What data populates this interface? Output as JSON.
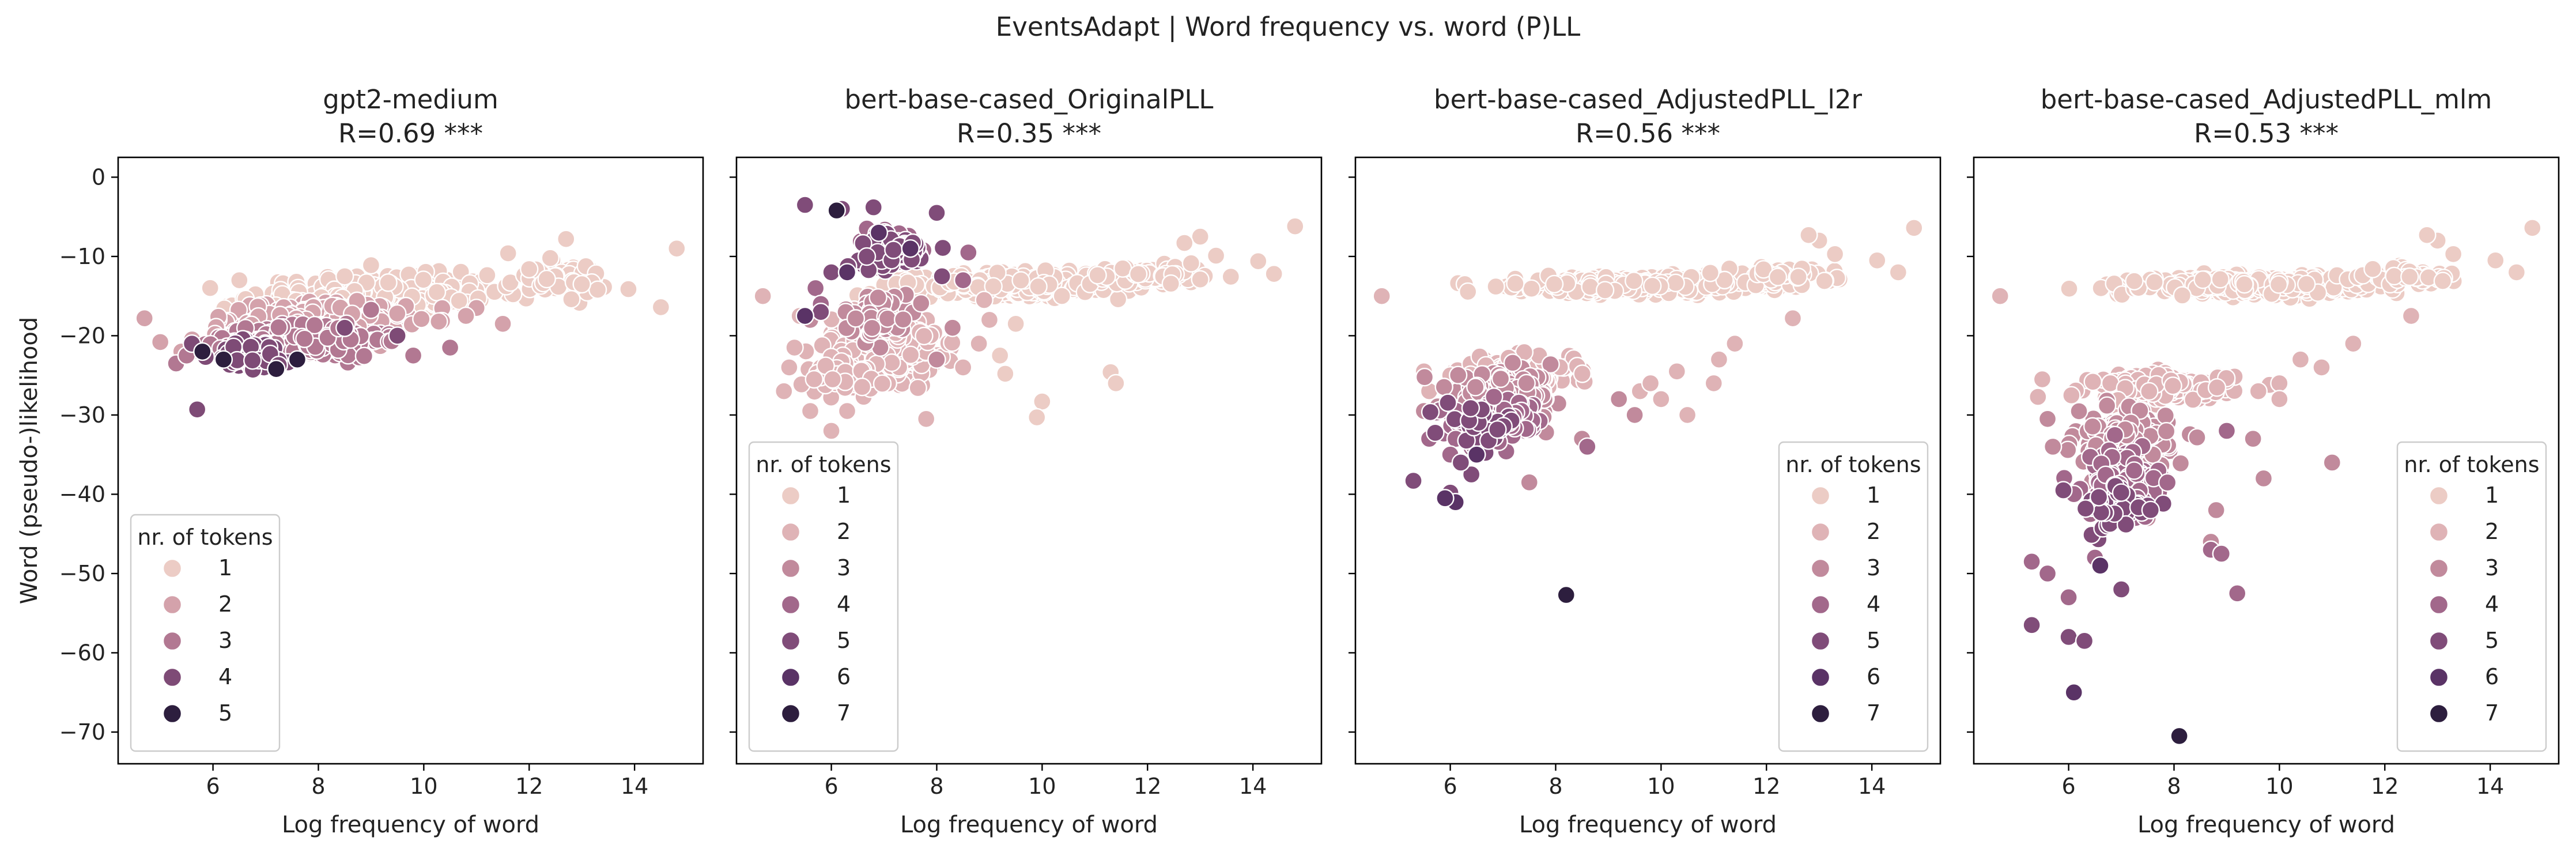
{
  "figure": {
    "suptitle": "EventsAdapt | Word frequency vs. word (P)LL"
  },
  "chart_data": [
    {
      "type": "scatter",
      "title": "gpt2-medium",
      "subtitle": "R=0.69 ***",
      "xlabel": "Log frequency of word",
      "ylabel": "Word (pseudo-)likelihood",
      "xlim": [
        4.2,
        15.3
      ],
      "ylim": [
        -74,
        2.5
      ],
      "xticks": [
        "6",
        "8",
        "10",
        "12",
        "14"
      ],
      "yticks": [
        "0",
        "−10",
        "−20",
        "−30",
        "−40",
        "−50",
        "−60",
        "−70"
      ],
      "legend": {
        "title": "nr. of tokens",
        "position": "lower left",
        "entries": [
          "1",
          "2",
          "3",
          "4",
          "5"
        ]
      },
      "series": [
        {
          "name": "1",
          "color": "#ecccc5",
          "clusters": [
            [
              9.5,
              -14.5,
              1.6,
              2.0,
              360
            ],
            [
              12.5,
              -13.0,
              0.9,
              1.8,
              60
            ],
            [
              7.5,
              -16.0,
              1.0,
              1.5,
              50
            ]
          ],
          "points": [
            [
              14.8,
              -9.0
            ],
            [
              14.5,
              -16.4
            ],
            [
              13.3,
              -14.2
            ],
            [
              12.7,
              -7.8
            ],
            [
              13.0,
              -13.5
            ],
            [
              12.8,
              -15.4
            ],
            [
              12.4,
              -10.2
            ],
            [
              12.0,
              -11.6
            ],
            [
              11.6,
              -9.6
            ],
            [
              9.0,
              -11.1
            ],
            [
              8.5,
              -12.5
            ],
            [
              6.5,
              -13.0
            ]
          ]
        },
        {
          "name": "2",
          "color": "#d4a2ab",
          "clusters": [
            [
              8.2,
              -18.0,
              1.3,
              2.0,
              260
            ],
            [
              6.5,
              -20.0,
              0.7,
              1.8,
              60
            ]
          ],
          "points": [
            [
              5.0,
              -20.8
            ],
            [
              5.4,
              -22.0
            ],
            [
              4.7,
              -17.8
            ],
            [
              11.0,
              -16.5
            ],
            [
              10.8,
              -17.5
            ],
            [
              11.5,
              -18.5
            ]
          ]
        },
        {
          "name": "3",
          "color": "#b27892",
          "clusters": [
            [
              8.0,
              -20.5,
              1.1,
              2.0,
              200
            ],
            [
              6.5,
              -22.0,
              0.5,
              1.5,
              50
            ]
          ],
          "points": [
            [
              5.3,
              -23.5
            ],
            [
              5.5,
              -22.5
            ],
            [
              10.5,
              -21.5
            ],
            [
              9.8,
              -22.5
            ]
          ]
        },
        {
          "name": "4",
          "color": "#7e4b76",
          "clusters": [
            [
              6.8,
              -22.5,
              0.7,
              1.8,
              50
            ]
          ],
          "points": [
            [
              5.7,
              -29.3
            ],
            [
              5.6,
              -21.0
            ],
            [
              9.5,
              -20.0
            ],
            [
              8.5,
              -19.0
            ]
          ]
        },
        {
          "name": "5",
          "color": "#2d1e3e",
          "points": [
            [
              7.2,
              -24.2
            ],
            [
              6.2,
              -23.0
            ],
            [
              5.8,
              -22.0
            ],
            [
              7.6,
              -23.0
            ]
          ]
        }
      ]
    },
    {
      "type": "scatter",
      "title": "bert-base-cased_OriginalPLL",
      "subtitle": "R=0.35 ***",
      "xlabel": "Log frequency of word",
      "ylabel": "",
      "xlim": [
        4.2,
        15.3
      ],
      "ylim": [
        -74,
        2.5
      ],
      "xticks": [
        "6",
        "8",
        "10",
        "12",
        "14"
      ],
      "yticks": [],
      "legend": {
        "title": "nr. of tokens",
        "position": "lower left",
        "entries": [
          "1",
          "2",
          "3",
          "4",
          "5",
          "6",
          "7"
        ]
      },
      "series": [
        {
          "name": "1",
          "color": "#ecccc5",
          "clusters": [
            [
              9.5,
              -13.5,
              1.7,
              1.2,
              420
            ],
            [
              12.0,
              -12.5,
              1.0,
              1.2,
              70
            ]
          ],
          "points": [
            [
              14.8,
              -6.2
            ],
            [
              14.1,
              -10.6
            ],
            [
              14.4,
              -12.2
            ],
            [
              13.3,
              -9.9
            ],
            [
              13.0,
              -7.5
            ],
            [
              12.7,
              -8.3
            ],
            [
              13.0,
              -12.9
            ],
            [
              11.3,
              -24.6
            ],
            [
              11.4,
              -26.0
            ],
            [
              10.0,
              -28.3
            ],
            [
              9.9,
              -30.3
            ],
            [
              9.3,
              -24.8
            ],
            [
              9.2,
              -22.5
            ],
            [
              9.5,
              -18.5
            ],
            [
              5.7,
              -26.0
            ]
          ]
        },
        {
          "name": "2",
          "color": "#dfb3b6",
          "clusters": [
            [
              7.0,
              -21.5,
              0.9,
              3.5,
              340
            ],
            [
              6.2,
              -25.0,
              0.6,
              2.5,
              60
            ]
          ],
          "points": [
            [
              4.7,
              -15.0
            ],
            [
              5.4,
              -17.5
            ],
            [
              5.2,
              -24.0
            ],
            [
              5.1,
              -27.0
            ],
            [
              5.6,
              -29.5
            ],
            [
              5.3,
              -21.5
            ],
            [
              6.0,
              -32.0
            ],
            [
              6.3,
              -29.5
            ],
            [
              8.5,
              -24.0
            ],
            [
              8.8,
              -21.0
            ],
            [
              7.8,
              -30.5
            ],
            [
              9.0,
              -18.0
            ],
            [
              8.9,
              -15.5
            ]
          ]
        },
        {
          "name": "3",
          "color": "#c18a9c",
          "clusters": [
            [
              6.9,
              -17.5,
              0.6,
              2.5,
              50
            ]
          ],
          "points": [
            [
              5.6,
              -18.0
            ],
            [
              8.3,
              -19.0
            ],
            [
              8.0,
              -23.0
            ]
          ]
        },
        {
          "name": "4",
          "color": "#a2688b",
          "clusters": [
            [
              7.1,
              -8.5,
              0.6,
              2.0,
              50
            ]
          ],
          "points": [
            [
              5.7,
              -14.0
            ],
            [
              5.8,
              -16.0
            ],
            [
              8.5,
              -13.0
            ],
            [
              8.6,
              -9.5
            ]
          ]
        },
        {
          "name": "5",
          "color": "#804c79",
          "clusters": [
            [
              7.2,
              -9.5,
              0.6,
              1.8,
              70
            ]
          ],
          "points": [
            [
              5.5,
              -3.5
            ],
            [
              6.2,
              -4.0
            ],
            [
              8.0,
              -4.5
            ],
            [
              6.8,
              -3.8
            ],
            [
              5.8,
              -17.0
            ],
            [
              6.0,
              -12.0
            ],
            [
              8.1,
              -12.5
            ]
          ]
        },
        {
          "name": "6",
          "color": "#5a3366",
          "points": [
            [
              6.3,
              -12.0
            ],
            [
              6.9,
              -7.0
            ],
            [
              7.5,
              -9.0
            ],
            [
              5.5,
              -17.5
            ]
          ]
        },
        {
          "name": "7",
          "color": "#2d1e3e",
          "points": [
            [
              6.1,
              -4.2
            ]
          ]
        }
      ]
    },
    {
      "type": "scatter",
      "title": "bert-base-cased_AdjustedPLL_l2r",
      "subtitle": "R=0.56 ***",
      "xlabel": "Log frequency of word",
      "ylabel": "",
      "xlim": [
        4.2,
        15.3
      ],
      "ylim": [
        -74,
        2.5
      ],
      "xticks": [
        "6",
        "8",
        "10",
        "12",
        "14"
      ],
      "yticks": [],
      "legend": {
        "title": "nr. of tokens",
        "position": "lower right",
        "entries": [
          "1",
          "2",
          "3",
          "4",
          "5",
          "6",
          "7"
        ]
      },
      "series": [
        {
          "name": "1",
          "color": "#ecccc5",
          "clusters": [
            [
              9.5,
              -13.6,
              1.9,
              0.9,
              420
            ],
            [
              12.3,
              -12.5,
              0.9,
              1.0,
              60
            ]
          ],
          "points": [
            [
              14.8,
              -6.4
            ],
            [
              14.5,
              -12.0
            ],
            [
              14.1,
              -10.5
            ],
            [
              13.3,
              -9.7
            ],
            [
              13.0,
              -8.0
            ],
            [
              13.1,
              -13.1
            ],
            [
              12.8,
              -7.3
            ]
          ]
        },
        {
          "name": "2",
          "color": "#dfb3b6",
          "clusters": [
            [
              7.2,
              -25.0,
              1.0,
              2.0,
              200
            ]
          ],
          "points": [
            [
              4.7,
              -15.0
            ],
            [
              5.5,
              -24.5
            ],
            [
              5.6,
              -27.0
            ],
            [
              12.5,
              -17.8
            ],
            [
              11.4,
              -21.0
            ],
            [
              11.1,
              -23.0
            ],
            [
              10.3,
              -24.5
            ],
            [
              11.0,
              -26.0
            ],
            [
              9.6,
              -27.0
            ],
            [
              10.0,
              -28.0
            ],
            [
              10.5,
              -30.0
            ],
            [
              9.8,
              -26.0
            ]
          ]
        },
        {
          "name": "3",
          "color": "#c18a9c",
          "clusters": [
            [
              7.0,
              -27.5,
              0.9,
              2.5,
              170
            ]
          ],
          "points": [
            [
              5.5,
              -29.5
            ],
            [
              9.2,
              -28.0
            ],
            [
              9.5,
              -30.0
            ],
            [
              8.5,
              -33.0
            ],
            [
              7.5,
              -38.5
            ]
          ]
        },
        {
          "name": "4",
          "color": "#a2688b",
          "clusters": [
            [
              6.9,
              -31.0,
              0.8,
              2.5,
              90
            ]
          ],
          "points": [
            [
              5.6,
              -33.0
            ],
            [
              6.0,
              -35.0
            ],
            [
              8.6,
              -34.0
            ]
          ]
        },
        {
          "name": "5",
          "color": "#804c79",
          "clusters": [
            [
              6.6,
              -31.0,
              0.6,
              2.0,
              35
            ]
          ],
          "points": [
            [
              5.3,
              -38.3
            ],
            [
              6.0,
              -39.8
            ],
            [
              6.4,
              -37.5
            ],
            [
              6.2,
              -36.0
            ]
          ]
        },
        {
          "name": "6",
          "color": "#5a3366",
          "points": [
            [
              6.1,
              -41.0
            ],
            [
              5.9,
              -40.5
            ],
            [
              6.5,
              -35.0
            ]
          ]
        },
        {
          "name": "7",
          "color": "#2d1e3e",
          "points": [
            [
              8.2,
              -52.7
            ]
          ]
        }
      ]
    },
    {
      "type": "scatter",
      "title": "bert-base-cased_AdjustedPLL_mlm",
      "subtitle": "R=0.53 ***",
      "xlabel": "Log frequency of word",
      "ylabel": "",
      "xlim": [
        4.2,
        15.3
      ],
      "ylim": [
        -74,
        2.5
      ],
      "xticks": [
        "6",
        "8",
        "10",
        "12",
        "14"
      ],
      "yticks": [],
      "legend": {
        "title": "nr. of tokens",
        "position": "lower right",
        "entries": [
          "1",
          "2",
          "3",
          "4",
          "5",
          "6",
          "7"
        ]
      },
      "series": [
        {
          "name": "1",
          "color": "#ecccc5",
          "clusters": [
            [
              9.5,
              -13.6,
              1.9,
              0.9,
              420
            ],
            [
              12.3,
              -12.5,
              0.9,
              1.0,
              60
            ]
          ],
          "points": [
            [
              14.8,
              -6.4
            ],
            [
              14.5,
              -12.0
            ],
            [
              14.1,
              -10.5
            ],
            [
              13.3,
              -9.7
            ],
            [
              13.0,
              -8.0
            ],
            [
              13.1,
              -13.1
            ],
            [
              12.8,
              -7.3
            ]
          ]
        },
        {
          "name": "2",
          "color": "#dfb3b6",
          "clusters": [
            [
              7.8,
              -26.5,
              1.2,
              1.5,
              200
            ]
          ],
          "points": [
            [
              4.7,
              -15.0
            ],
            [
              5.5,
              -25.5
            ],
            [
              12.5,
              -17.5
            ],
            [
              11.4,
              -21.0
            ],
            [
              10.8,
              -24.0
            ],
            [
              10.4,
              -23.0
            ],
            [
              10.0,
              -26.0
            ],
            [
              10.0,
              -28.0
            ],
            [
              9.6,
              -27.0
            ]
          ]
        },
        {
          "name": "3",
          "color": "#c18a9c",
          "clusters": [
            [
              7.0,
              -33.5,
              0.8,
              3.5,
              170
            ]
          ],
          "points": [
            [
              5.6,
              -30.5
            ],
            [
              9.7,
              -38.0
            ],
            [
              9.5,
              -33.0
            ],
            [
              8.8,
              -42.0
            ],
            [
              8.7,
              -46.0
            ],
            [
              7.5,
              -43.0
            ],
            [
              5.7,
              -34.0
            ],
            [
              11.0,
              -36.0
            ]
          ]
        },
        {
          "name": "4",
          "color": "#a2688b",
          "clusters": [
            [
              7.1,
              -38.5,
              0.7,
              4.0,
              110
            ]
          ],
          "points": [
            [
              5.3,
              -48.5
            ],
            [
              5.6,
              -50.0
            ],
            [
              6.0,
              -53.0
            ],
            [
              8.7,
              -47.0
            ],
            [
              8.9,
              -47.5
            ],
            [
              9.2,
              -52.5
            ],
            [
              9.0,
              -32.0
            ],
            [
              6.5,
              -48.0
            ]
          ]
        },
        {
          "name": "5",
          "color": "#804c79",
          "clusters": [
            [
              7.0,
              -42.0,
              0.6,
              3.0,
              40
            ]
          ],
          "points": [
            [
              5.3,
              -56.5
            ],
            [
              6.0,
              -58.0
            ],
            [
              6.3,
              -58.5
            ],
            [
              5.9,
              -39.5
            ],
            [
              7.0,
              -52.0
            ]
          ]
        },
        {
          "name": "6",
          "color": "#5a3366",
          "points": [
            [
              6.1,
              -65.0
            ],
            [
              6.6,
              -49.0
            ]
          ]
        },
        {
          "name": "7",
          "color": "#2d1e3e",
          "points": [
            [
              8.1,
              -70.5
            ]
          ]
        }
      ]
    }
  ]
}
